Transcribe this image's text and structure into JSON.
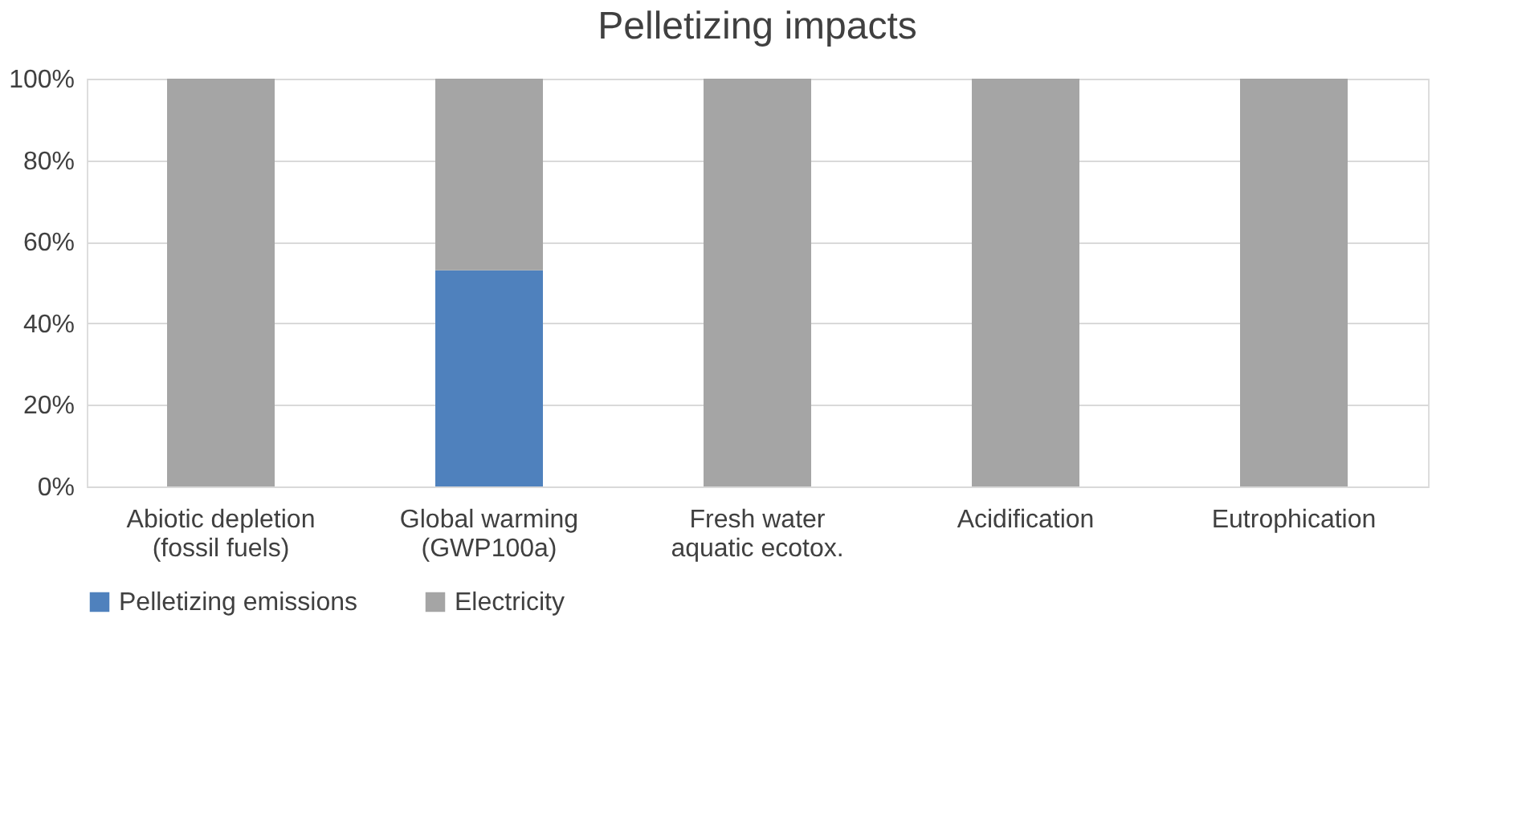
{
  "chart_data": {
    "type": "bar",
    "title": "Pelletizing impacts",
    "stacked": true,
    "categories": [
      "Abiotic depletion (fossil fuels)",
      "Global warming (GWP100a)",
      "Fresh water aquatic ecotox.",
      "Acidification",
      "Eutrophication"
    ],
    "series": [
      {
        "name": "Pelletizing emissions",
        "color": "#4f81bd",
        "values": [
          0,
          53,
          0,
          0,
          0
        ]
      },
      {
        "name": "Electricity",
        "color": "#a5a5a5",
        "values": [
          100,
          47,
          100,
          100,
          100
        ]
      }
    ],
    "ylim": [
      0,
      100
    ],
    "yticks": [
      {
        "value": 0,
        "label": "0%"
      },
      {
        "value": 20,
        "label": "20%"
      },
      {
        "value": 40,
        "label": "40%"
      },
      {
        "value": 60,
        "label": "60%"
      },
      {
        "value": 80,
        "label": "80%"
      },
      {
        "value": 100,
        "label": "100%"
      }
    ],
    "grid": "y",
    "legend": "bottom"
  }
}
